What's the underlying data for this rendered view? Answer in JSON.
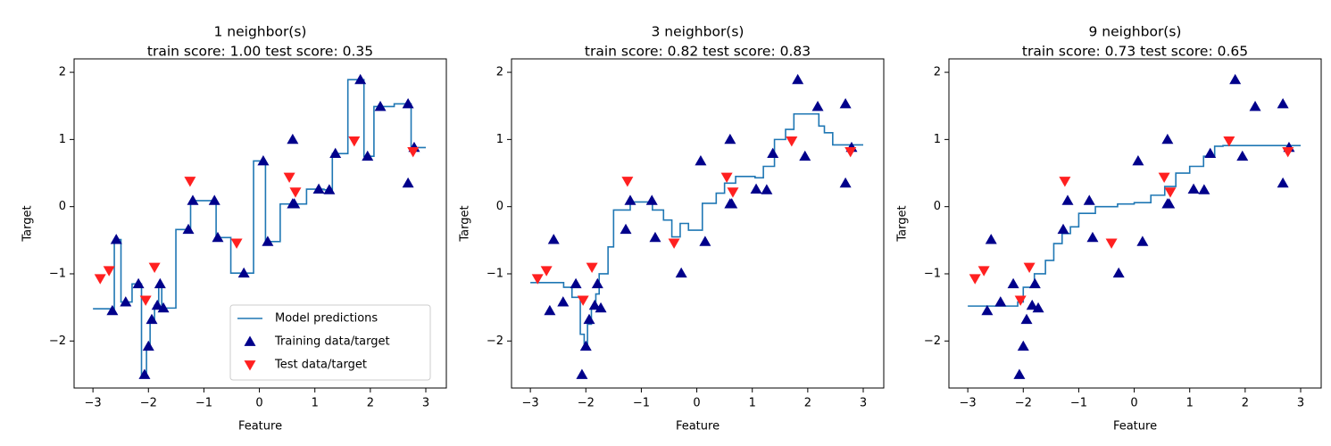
{
  "chart_data": [
    {
      "type": "knn",
      "title": "1 neighbor(s)",
      "subtitle": "train score: 1.00 test score: 0.35",
      "x_label": "Feature",
      "y_label": "Target",
      "legend": "lower right",
      "xlim": [
        -3.34,
        3.37
      ],
      "ylim": [
        -2.7,
        2.2
      ],
      "xticks": [
        {
          "value": -3,
          "label": "−3"
        },
        {
          "value": -2,
          "label": "−2"
        },
        {
          "value": -1,
          "label": "−1"
        },
        0,
        1,
        2,
        3
      ],
      "yticks": [
        {
          "value": -2,
          "label": "−2"
        },
        {
          "value": -1,
          "label": "−1"
        },
        0,
        1,
        2
      ],
      "series": [
        {
          "name": "Model predictions",
          "color": "#1f77b4",
          "marker": "line",
          "drawstyle": "steps-post",
          "x": [
            -3,
            -2.615,
            -2.495,
            -2.295,
            -2.125,
            -2.035,
            -1.97,
            -1.89,
            -1.815,
            -1.76,
            -1.505,
            -1.24,
            -0.78,
            -0.515,
            -0.105,
            0.11,
            0.375,
            0.85,
            1.165,
            1.315,
            1.595,
            1.885,
            2.065,
            2.43,
            2.735,
            3
          ],
          "values": [
            -1.52,
            -0.49,
            -1.42,
            -1.15,
            -2.5,
            -2.08,
            -1.68,
            -1.47,
            -1.15,
            -1.51,
            -0.34,
            0.09,
            -0.46,
            -0.99,
            0.68,
            -0.52,
            0.04,
            0.26,
            0.25,
            0.79,
            1.89,
            0.75,
            1.49,
            1.53,
            0.88,
            0.88
          ]
        },
        {
          "name": "Training data/target",
          "color": "#00008b",
          "marker": "^",
          "x": [
            -2.65,
            -2.58,
            -2.41,
            -2.18,
            -2.07,
            -2.0,
            -1.94,
            -1.84,
            -1.79,
            -1.73,
            -1.28,
            -1.2,
            -0.81,
            -0.75,
            -0.28,
            0.07,
            0.15,
            0.6,
            0.6,
            0.63,
            1.07,
            1.26,
            1.37,
            1.82,
            1.95,
            2.18,
            2.68,
            2.68,
            2.79
          ],
          "values": [
            -1.55,
            -0.49,
            -1.42,
            -1.15,
            -2.5,
            -2.08,
            -1.68,
            -1.47,
            -1.15,
            -1.51,
            -0.34,
            0.09,
            0.09,
            -0.46,
            -0.99,
            0.68,
            -0.52,
            1.0,
            0.04,
            0.04,
            0.26,
            0.25,
            0.79,
            1.89,
            0.75,
            1.49,
            1.53,
            0.35,
            0.88
          ]
        },
        {
          "name": "Test data/target",
          "color": "#ff2020",
          "marker": "v",
          "x": [
            -2.87,
            -2.71,
            -2.05,
            -1.89,
            -1.25,
            -0.41,
            0.54,
            0.65,
            1.71,
            2.77
          ],
          "values": [
            -1.07,
            -0.95,
            -1.39,
            -0.9,
            0.38,
            -0.54,
            0.44,
            0.22,
            0.98,
            0.82
          ]
        }
      ]
    },
    {
      "type": "knn",
      "title": "3 neighbor(s)",
      "subtitle": "train score: 0.82 test score: 0.83",
      "x_label": "Feature",
      "y_label": "Target",
      "xlim": [
        -3.34,
        3.37
      ],
      "ylim": [
        -2.7,
        2.2
      ],
      "xticks": [
        {
          "value": -3,
          "label": "−3"
        },
        {
          "value": -2,
          "label": "−2"
        },
        {
          "value": -1,
          "label": "−1"
        },
        0,
        1,
        2,
        3
      ],
      "yticks": [
        {
          "value": -2,
          "label": "−2"
        },
        {
          "value": -1,
          "label": "−1"
        },
        0,
        1,
        2
      ],
      "series": [
        {
          "color": "#1f77b4",
          "marker": "line",
          "drawstyle": "steps-post",
          "x": [
            -3,
            -2.4,
            -2.25,
            -2.1,
            -2.03,
            -1.97,
            -1.9,
            -1.82,
            -1.76,
            -1.6,
            -1.5,
            -1.2,
            -0.8,
            -0.6,
            -0.45,
            -0.3,
            -0.15,
            0.1,
            0.35,
            0.5,
            0.7,
            1.05,
            1.2,
            1.4,
            1.6,
            1.75,
            2.1,
            2.2,
            2.3,
            2.45,
            3
          ],
          "values": [
            -1.13,
            -1.2,
            -1.35,
            -1.9,
            -2.1,
            -1.75,
            -1.5,
            -1.3,
            -1.0,
            -0.6,
            -0.05,
            0.07,
            -0.05,
            -0.2,
            -0.45,
            -0.25,
            -0.35,
            0.05,
            0.2,
            0.35,
            0.45,
            0.43,
            0.6,
            1.0,
            1.15,
            1.38,
            1.38,
            1.2,
            1.1,
            0.92,
            0.92
          ]
        },
        {
          "color": "#00008b",
          "marker": "^",
          "x": [
            -2.65,
            -2.58,
            -2.41,
            -2.18,
            -2.07,
            -2.0,
            -1.94,
            -1.84,
            -1.79,
            -1.73,
            -1.28,
            -1.2,
            -0.81,
            -0.75,
            -0.28,
            0.07,
            0.15,
            0.6,
            0.6,
            0.63,
            1.07,
            1.26,
            1.37,
            1.82,
            1.95,
            2.18,
            2.68,
            2.68,
            2.79
          ],
          "values": [
            -1.55,
            -0.49,
            -1.42,
            -1.15,
            -2.5,
            -2.08,
            -1.68,
            -1.47,
            -1.15,
            -1.51,
            -0.34,
            0.09,
            0.09,
            -0.46,
            -0.99,
            0.68,
            -0.52,
            1.0,
            0.04,
            0.04,
            0.26,
            0.25,
            0.79,
            1.89,
            0.75,
            1.49,
            1.53,
            0.35,
            0.88
          ]
        },
        {
          "color": "#ff2020",
          "marker": "v",
          "x": [
            -2.87,
            -2.71,
            -2.05,
            -1.89,
            -1.25,
            -0.41,
            0.54,
            0.65,
            1.71,
            2.77
          ],
          "values": [
            -1.07,
            -0.95,
            -1.39,
            -0.9,
            0.38,
            -0.54,
            0.44,
            0.22,
            0.98,
            0.82
          ]
        }
      ]
    },
    {
      "type": "knn",
      "title": "9 neighbor(s)",
      "subtitle": "train score: 0.73 test score: 0.65",
      "x_label": "Feature",
      "y_label": "Target",
      "xlim": [
        -3.34,
        3.37
      ],
      "ylim": [
        -2.7,
        2.2
      ],
      "xticks": [
        {
          "value": -3,
          "label": "−3"
        },
        {
          "value": -2,
          "label": "−2"
        },
        {
          "value": -1,
          "label": "−1"
        },
        0,
        1,
        2,
        3
      ],
      "yticks": [
        {
          "value": -2,
          "label": "−2"
        },
        {
          "value": -1,
          "label": "−1"
        },
        0,
        1,
        2
      ],
      "series": [
        {
          "color": "#1f77b4",
          "marker": "line",
          "drawstyle": "steps-post",
          "x": [
            -3,
            -2.1,
            -2.0,
            -1.8,
            -1.6,
            -1.45,
            -1.3,
            -1.15,
            -1.0,
            -0.7,
            -0.3,
            0.0,
            0.3,
            0.55,
            0.75,
            1.0,
            1.25,
            1.45,
            1.6,
            3
          ],
          "values": [
            -1.48,
            -1.42,
            -1.2,
            -1.0,
            -0.8,
            -0.55,
            -0.4,
            -0.3,
            -0.1,
            0.0,
            0.04,
            0.06,
            0.17,
            0.3,
            0.5,
            0.6,
            0.75,
            0.9,
            0.91,
            0.91
          ]
        },
        {
          "color": "#00008b",
          "marker": "^",
          "x": [
            -2.65,
            -2.58,
            -2.41,
            -2.18,
            -2.07,
            -2.0,
            -1.94,
            -1.84,
            -1.79,
            -1.73,
            -1.28,
            -1.2,
            -0.81,
            -0.75,
            -0.28,
            0.07,
            0.15,
            0.6,
            0.6,
            0.63,
            1.07,
            1.26,
            1.37,
            1.82,
            1.95,
            2.18,
            2.68,
            2.68,
            2.79
          ],
          "values": [
            -1.55,
            -0.49,
            -1.42,
            -1.15,
            -2.5,
            -2.08,
            -1.68,
            -1.47,
            -1.15,
            -1.51,
            -0.34,
            0.09,
            0.09,
            -0.46,
            -0.99,
            0.68,
            -0.52,
            1.0,
            0.04,
            0.04,
            0.26,
            0.25,
            0.79,
            1.89,
            0.75,
            1.49,
            1.53,
            0.35,
            0.88
          ]
        },
        {
          "color": "#ff2020",
          "marker": "v",
          "x": [
            -2.87,
            -2.71,
            -2.05,
            -1.89,
            -1.25,
            -0.41,
            0.54,
            0.65,
            1.71,
            2.77
          ],
          "values": [
            -1.07,
            -0.95,
            -1.39,
            -0.9,
            0.38,
            -0.54,
            0.44,
            0.22,
            0.98,
            0.82
          ]
        }
      ]
    }
  ]
}
